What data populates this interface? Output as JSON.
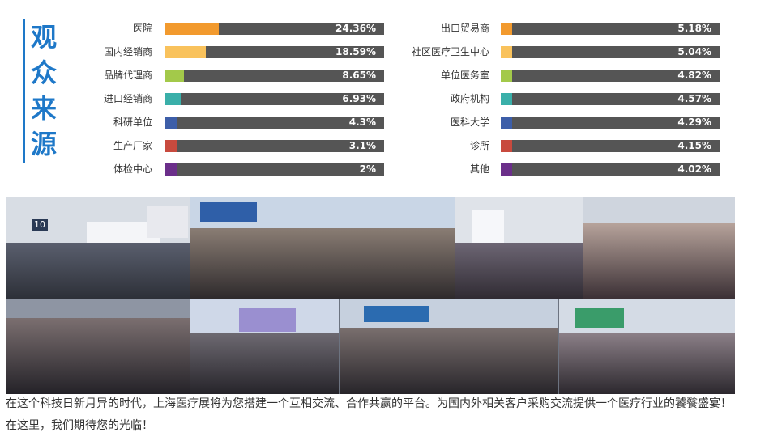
{
  "side_title": [
    "观",
    "众",
    "来",
    "源"
  ],
  "colors": {
    "title_blue": "#1e78c8",
    "bar_track": "#555555",
    "row_palette": [
      "#f29a2e",
      "#f9c25c",
      "#a3c94a",
      "#3aafa9",
      "#3d5ea8",
      "#c84a3e",
      "#6b2f8a"
    ]
  },
  "chart_data": [
    {
      "type": "bar",
      "orientation": "horizontal",
      "categories": [
        "医院",
        "国内经销商",
        "品牌代理商",
        "进口经销商",
        "科研单位",
        "生产厂家",
        "体检中心"
      ],
      "values": [
        24.36,
        18.59,
        8.65,
        6.93,
        4.3,
        3.1,
        2
      ],
      "value_labels": [
        "24.36%",
        "18.59%",
        "8.65%",
        "6.93%",
        "4.3%",
        "3.1%",
        "2%"
      ],
      "xlim": [
        0,
        100
      ]
    },
    {
      "type": "bar",
      "orientation": "horizontal",
      "categories": [
        "出口贸易商",
        "社区医疗卫生中心",
        "单位医务室",
        "政府机构",
        "医科大学",
        "诊所",
        "其他"
      ],
      "values": [
        5.18,
        5.04,
        4.82,
        4.57,
        4.29,
        4.15,
        4.02
      ],
      "value_labels": [
        "5.18%",
        "5.04%",
        "4.82%",
        "4.57%",
        "4.29%",
        "4.15%",
        "4.02%"
      ],
      "xlim": [
        0,
        100
      ]
    }
  ],
  "photo_sign": "10",
  "footer": {
    "line1": "在这个科技日新月异的时代，上海医疗展将为您搭建一个互相交流、合作共赢的平台。为国内外相关客户采购交流提供一个医疗行业的饕餮盛宴！",
    "line2": "在这里，我们期待您的光临！"
  }
}
